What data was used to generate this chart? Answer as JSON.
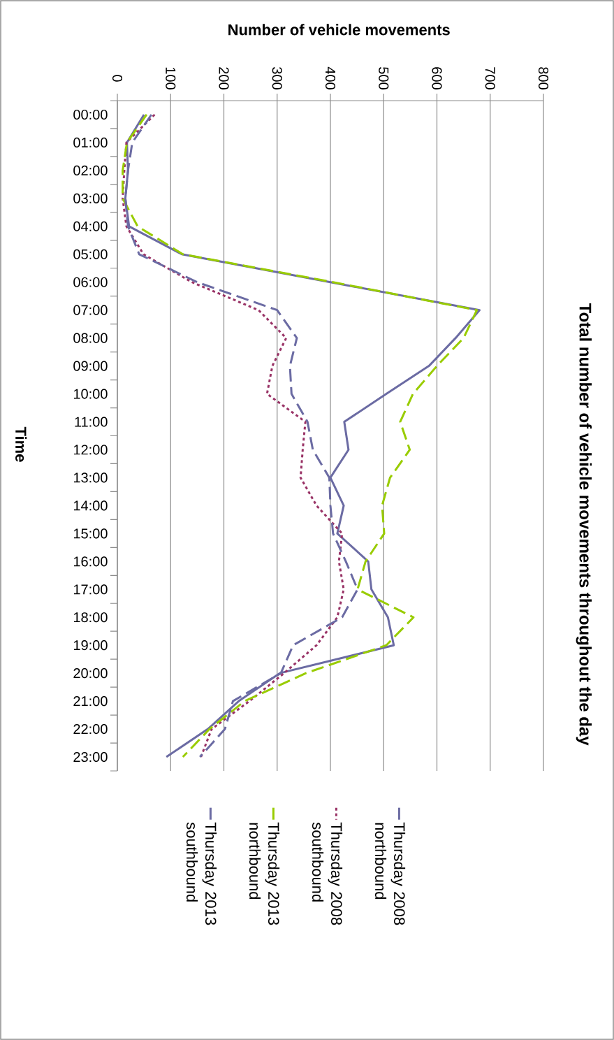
{
  "chart_data": {
    "type": "line",
    "orientation": "horizontal",
    "title": "Total number of vehicle movements throughout the day",
    "xlabel": "Number of vehicle movements",
    "ylabel": "Time",
    "categories": [
      "00:00",
      "01:00",
      "02:00",
      "03:00",
      "04:00",
      "05:00",
      "06:00",
      "07:00",
      "08:00",
      "09:00",
      "10:00",
      "11:00",
      "12:00",
      "13:00",
      "14:00",
      "15:00",
      "16:00",
      "17:00",
      "18:00",
      "19:00",
      "20:00",
      "21:00",
      "22:00",
      "23:00"
    ],
    "series": [
      {
        "name": "Thursday 2008 northbound",
        "color": "#6b6ba3",
        "line_style": "solid",
        "values": [
          50,
          18,
          20,
          15,
          22,
          121,
          400,
          680,
          635,
          585,
          505,
          426,
          434,
          400,
          425,
          413,
          471,
          477,
          508,
          519,
          305,
          228,
          170,
          92
        ]
      },
      {
        "name": "Thursday 2008 southbound",
        "color": "#993366",
        "line_style": "dotted",
        "values": [
          70,
          17,
          13,
          10,
          17,
          49,
          140,
          265,
          317,
          291,
          281,
          353,
          348,
          344,
          374,
          422,
          416,
          425,
          413,
          374,
          313,
          248,
          177,
          157
        ]
      },
      {
        "name": "Thursday 2013 northbound",
        "color": "#99cc00",
        "line_style": "dashed",
        "values": [
          55,
          18,
          10,
          10,
          38,
          123,
          405,
          675,
          650,
          600,
          555,
          531,
          549,
          512,
          497,
          501,
          466,
          451,
          556,
          505,
          354,
          239,
          173,
          123
        ]
      },
      {
        "name": "Thursday 2013 southbound",
        "color": "#6b6ba3",
        "line_style": "dashed",
        "values": [
          64,
          28,
          20,
          15,
          20,
          41,
          150,
          300,
          337,
          324,
          327,
          357,
          367,
          398,
          400,
          405,
          429,
          451,
          422,
          330,
          307,
          217,
          202,
          155
        ]
      }
    ],
    "xlim": [
      0,
      800
    ],
    "xticks": [
      0,
      100,
      200,
      300,
      400,
      500,
      600,
      700,
      800
    ],
    "grid": "x",
    "legend": "bottom",
    "marker": "none"
  }
}
